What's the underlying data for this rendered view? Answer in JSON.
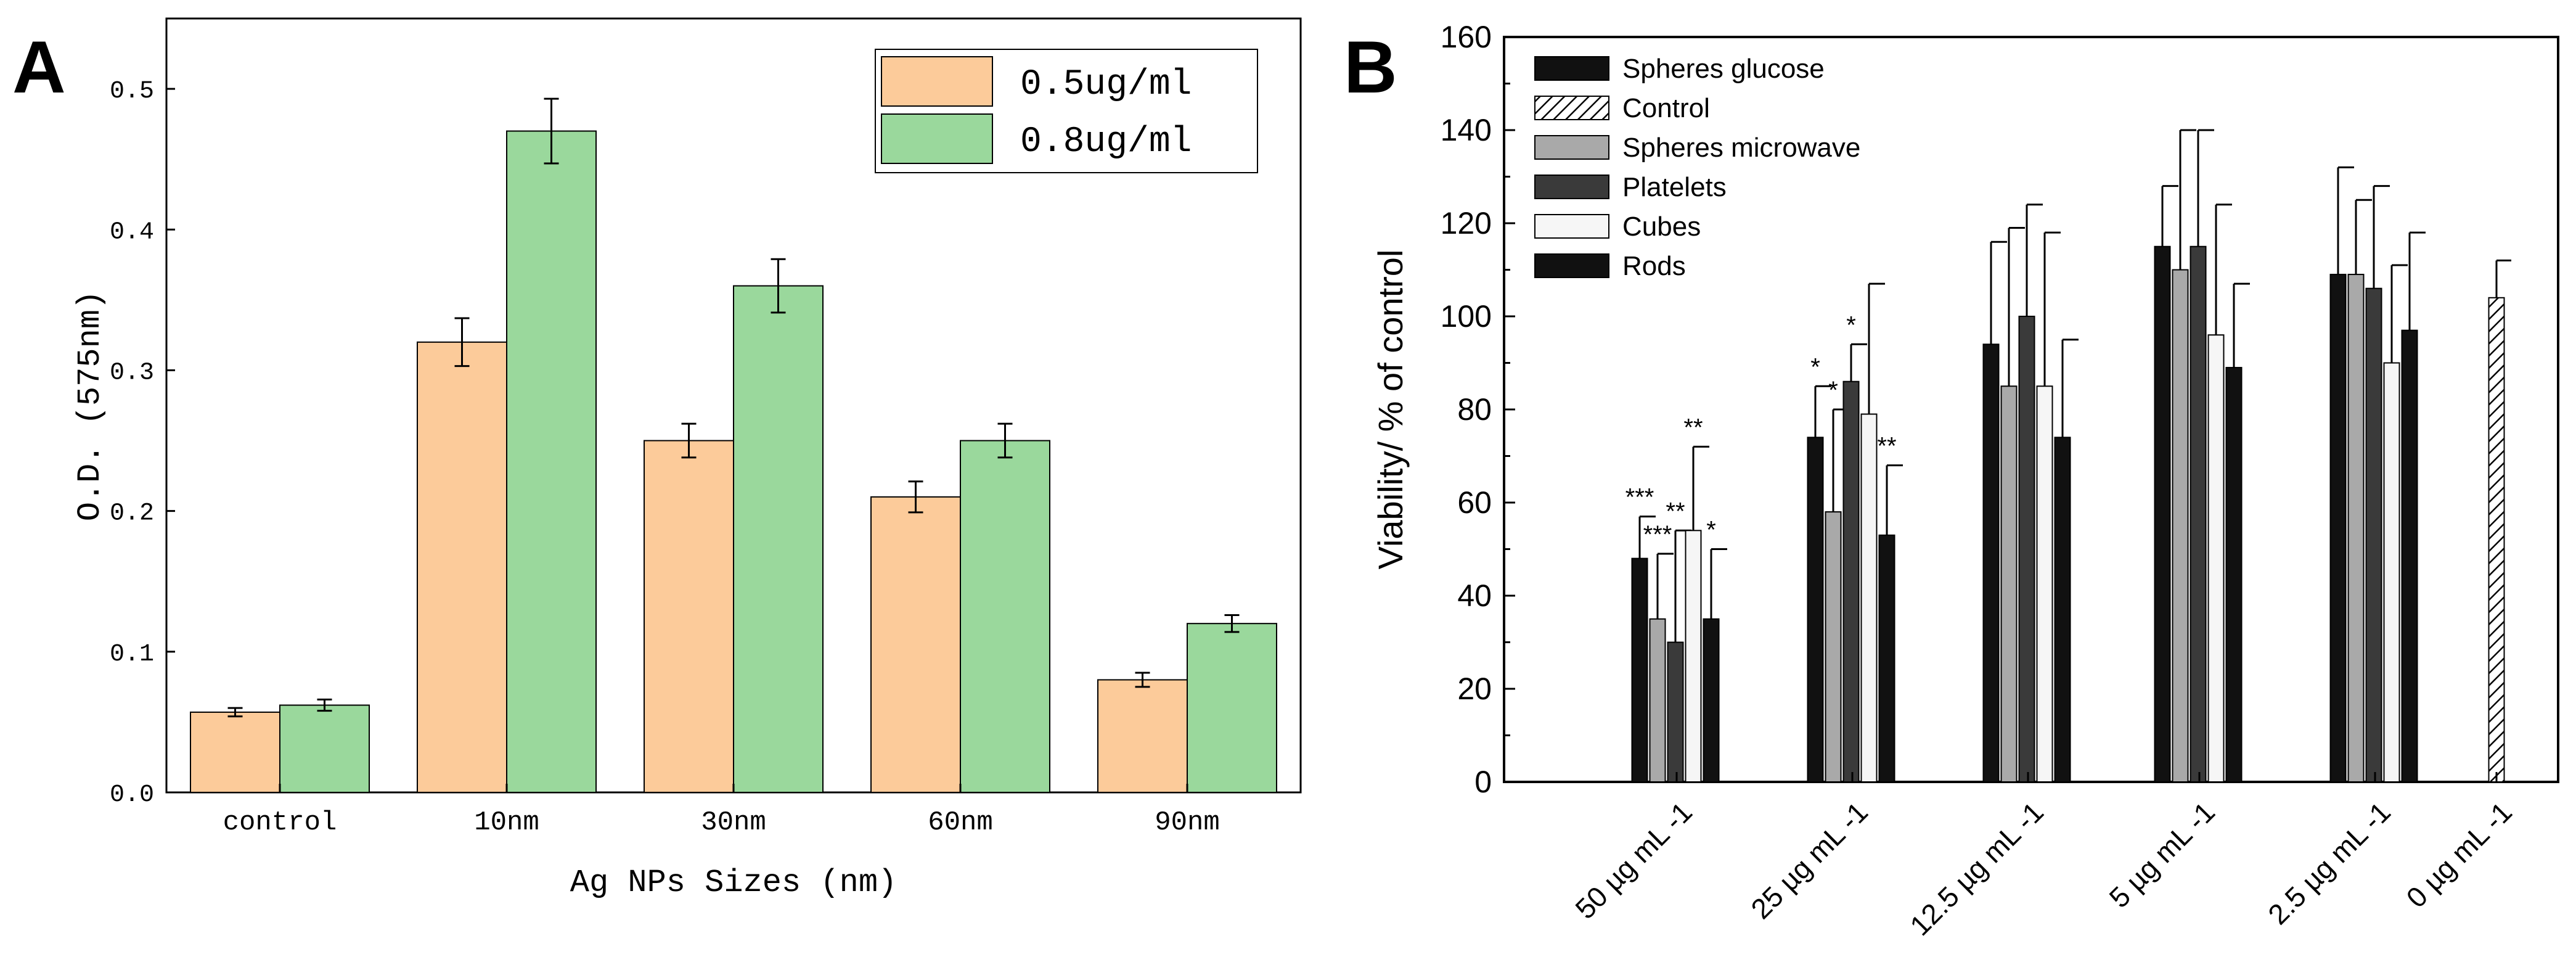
{
  "colors": {
    "orange": "#FCCB9A",
    "green": "#9AD89C",
    "black": "#111111",
    "gray": "#A9A9A9",
    "darkgray": "#3A3A3A",
    "white": "#F6F6F6"
  },
  "chart_data": [
    {
      "panel": "A",
      "type": "bar",
      "title": "",
      "xlabel": "Ag NPs Sizes (nm)",
      "ylabel": "O.D. (575nm)",
      "ylim": [
        0,
        0.55
      ],
      "yticks": [
        "0.0",
        "0.1",
        "0.2",
        "0.3",
        "0.4",
        "0.5"
      ],
      "categories": [
        "control",
        "10nm",
        "30nm",
        "60nm",
        "90nm"
      ],
      "series": [
        {
          "name": "0.5ug/ml",
          "color": "#FCCB9A",
          "values": [
            0.057,
            0.32,
            0.25,
            0.21,
            0.08
          ],
          "errors": [
            0.003,
            0.017,
            0.012,
            0.011,
            0.005
          ]
        },
        {
          "name": "0.8ug/ml",
          "color": "#9AD89C",
          "values": [
            0.062,
            0.47,
            0.36,
            0.25,
            0.12
          ],
          "errors": [
            0.004,
            0.023,
            0.019,
            0.012,
            0.006
          ]
        }
      ],
      "legend_position": "top-right"
    },
    {
      "panel": "B",
      "type": "bar",
      "title": "",
      "xlabel": "",
      "ylabel": "Viability/ % of control",
      "ylim": [
        0,
        160
      ],
      "yticks": [
        "0",
        "20",
        "40",
        "60",
        "80",
        "100",
        "120",
        "140",
        "160"
      ],
      "categories": [
        "50 µg mL -1",
        "25 µg mL -1",
        "12.5 µg mL -1",
        "5 µg mL -1",
        "2.5 µg mL -1",
        "0 µg mL -1"
      ],
      "series": [
        {
          "name": "Spheres glucose",
          "fill": "black",
          "values": [
            48,
            74,
            94,
            115,
            109,
            null
          ],
          "errors": [
            9,
            11,
            22,
            13,
            23,
            null
          ],
          "stars": [
            "***",
            "*",
            "",
            "",
            "",
            ""
          ]
        },
        {
          "name": "Control",
          "fill": "hatch",
          "values": [
            null,
            null,
            null,
            null,
            null,
            104
          ],
          "errors": [
            null,
            null,
            null,
            null,
            null,
            8
          ],
          "stars": [
            "",
            "",
            "",
            "",
            "",
            ""
          ]
        },
        {
          "name": "Spheres microwave",
          "fill": "gray",
          "values": [
            35,
            58,
            85,
            110,
            109,
            null
          ],
          "errors": [
            14,
            22,
            34,
            30,
            16,
            null
          ],
          "stars": [
            "***",
            "*",
            "",
            "",
            "",
            ""
          ]
        },
        {
          "name": "Platelets",
          "fill": "darkgray",
          "values": [
            30,
            86,
            100,
            115,
            106,
            null
          ],
          "errors": [
            24,
            8,
            24,
            25,
            22,
            null
          ],
          "stars": [
            "**",
            "*",
            "",
            "",
            "",
            ""
          ]
        },
        {
          "name": "Cubes",
          "fill": "white",
          "values": [
            54,
            79,
            85,
            96,
            90,
            null
          ],
          "errors": [
            18,
            28,
            33,
            28,
            21,
            null
          ],
          "stars": [
            "**",
            "",
            "",
            "",
            "",
            ""
          ]
        },
        {
          "name": "Rods",
          "fill": "black",
          "values": [
            35,
            53,
            74,
            89,
            97,
            null
          ],
          "errors": [
            15,
            15,
            21,
            18,
            21,
            null
          ],
          "stars": [
            "*",
            "**",
            "",
            "",
            "",
            ""
          ]
        }
      ],
      "legend_position": "top-left"
    }
  ],
  "panel_labels": [
    "A",
    "B"
  ]
}
